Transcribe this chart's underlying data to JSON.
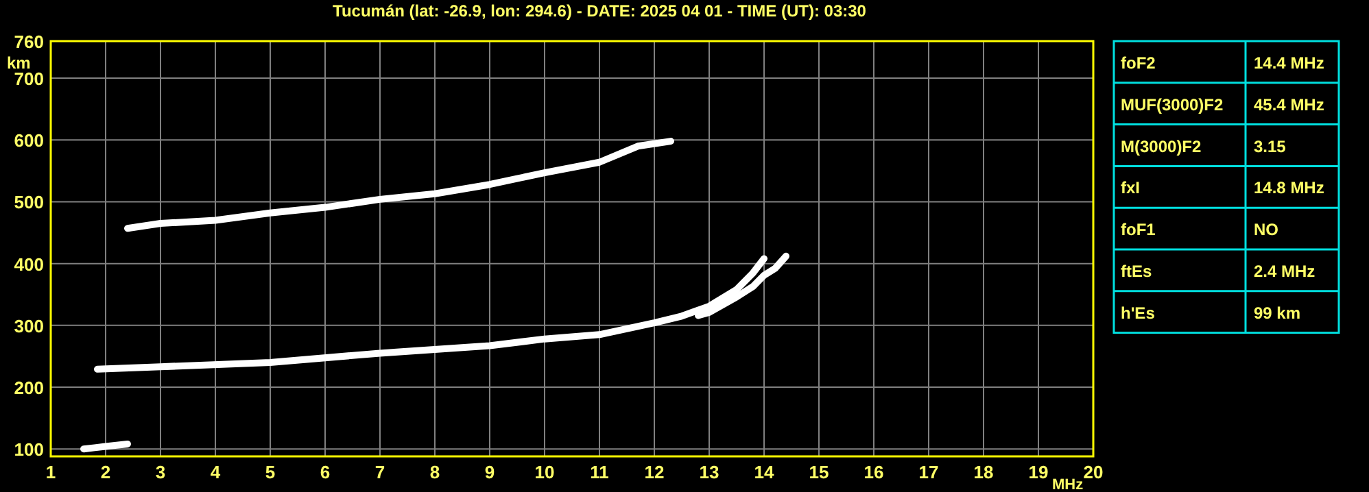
{
  "chart_data": [
    {
      "type": "line",
      "title": "Tucumán (lat: -26.9, lon: 294.6) - DATE: 2025 04 01 - TIME (UT): 03:30",
      "xlabel": "MHz",
      "ylabel": "km",
      "xlim": [
        1,
        20
      ],
      "xticks": [
        1,
        2,
        3,
        4,
        5,
        6,
        7,
        8,
        9,
        10,
        11,
        12,
        13,
        14,
        15,
        16,
        17,
        18,
        19,
        20
      ],
      "ylim": [
        88,
        760
      ],
      "yticks": [
        100,
        200,
        300,
        400,
        500,
        600,
        700,
        760
      ],
      "grid": true,
      "line_style": "solid",
      "series": [
        {
          "color": "#ffffff",
          "x": [
            1.85,
            3,
            5,
            7,
            9,
            10,
            11,
            12,
            12.5,
            13,
            13.5,
            13.8,
            14.0
          ],
          "values": [
            229,
            233,
            240,
            255,
            267,
            278,
            285,
            304,
            315,
            331,
            358,
            385,
            408
          ]
        },
        {
          "color": "#ffffff",
          "x": [
            12.8,
            13,
            13.5,
            13.8,
            14.0,
            14.2,
            14.4
          ],
          "values": [
            316,
            321,
            346,
            363,
            381,
            392,
            412
          ]
        },
        {
          "color": "#ffffff",
          "x": [
            2.4,
            3,
            4,
            5,
            6,
            7,
            8,
            9,
            10,
            11,
            11.7,
            12.3
          ],
          "values": [
            457,
            465,
            470,
            482,
            491,
            504,
            513,
            528,
            547,
            564,
            590,
            598
          ]
        },
        {
          "color": "#ffffff",
          "x": [
            1.6,
            1.8,
            2.0,
            2.2,
            2.4
          ],
          "values": [
            100,
            102,
            104,
            106,
            108
          ]
        }
      ]
    },
    {
      "type": "other",
      "categories": [
        "foF2",
        "MUF(3000)F2",
        "M(3000)F2",
        "fxI",
        "foF1",
        "ftEs",
        "h'Es"
      ],
      "value_labels": [
        "14.4 MHz",
        "45.4 MHz",
        "3.15",
        "14.8 MHz",
        "NO",
        "2.4 MHz",
        "99 km"
      ]
    }
  ]
}
